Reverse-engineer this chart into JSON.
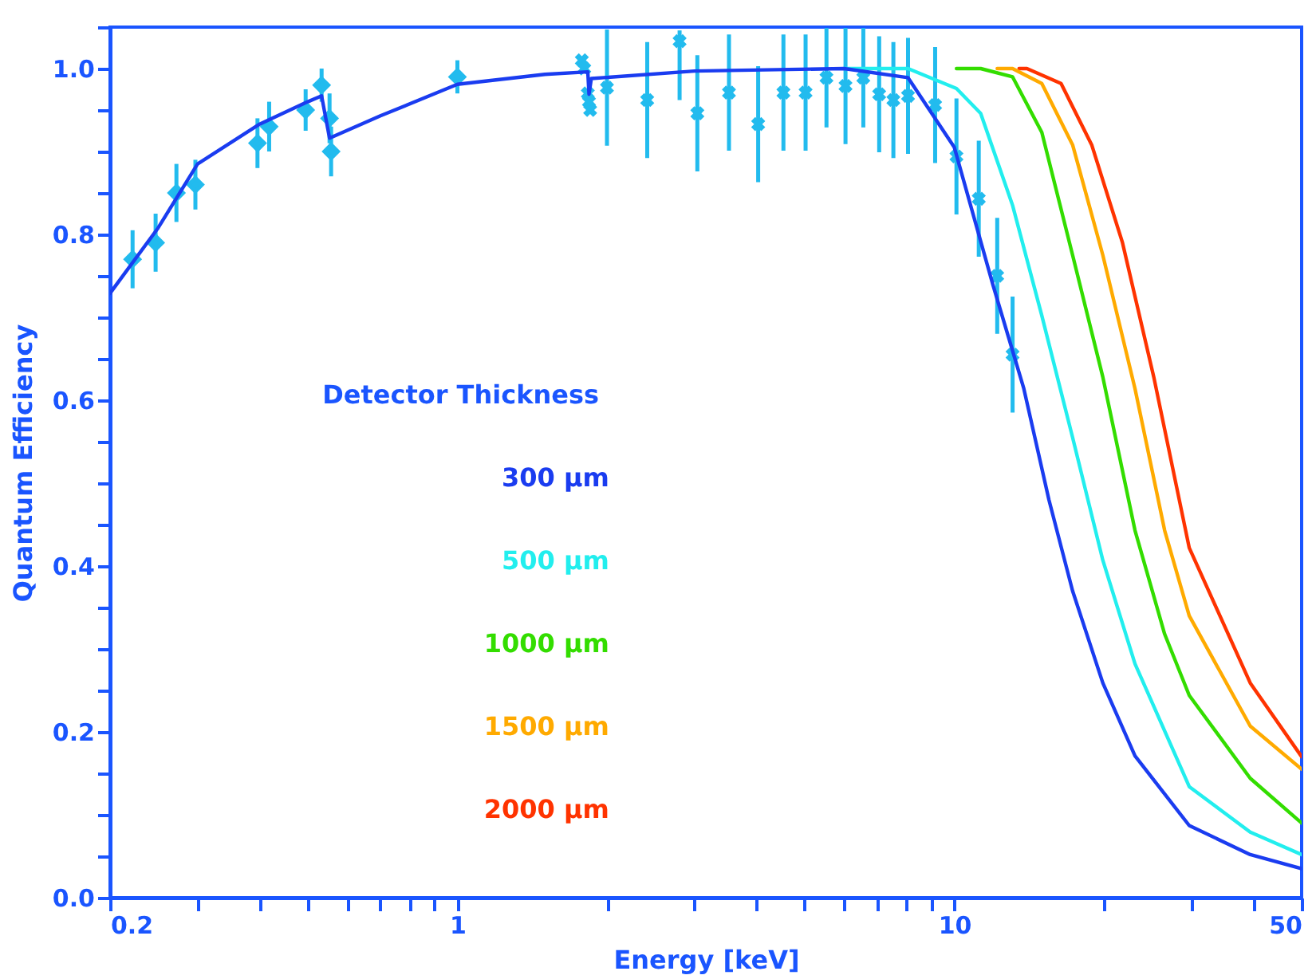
{
  "chart_data": {
    "type": "line",
    "xlabel": "Energy [keV]",
    "ylabel": "Quantum Efficiency",
    "legend_title": "Detector Thickness",
    "legend": "left",
    "log": "x",
    "grid": false,
    "line_style": "solid",
    "xlim": [
      0.2,
      50
    ],
    "ylim": [
      0,
      1.05
    ],
    "xticks": [
      0.2,
      {
        "value": 0.3,
        "label": null
      },
      {
        "value": 0.4,
        "label": null
      },
      {
        "value": 0.5,
        "label": null
      },
      {
        "value": 0.6,
        "label": null
      },
      {
        "value": 0.7,
        "label": null
      },
      {
        "value": 0.8,
        "label": null
      },
      {
        "value": 0.9,
        "label": null
      },
      1,
      {
        "value": 2,
        "label": null
      },
      {
        "value": 3,
        "label": null
      },
      {
        "value": 4,
        "label": null
      },
      {
        "value": 5,
        "label": null
      },
      {
        "value": 6,
        "label": null
      },
      {
        "value": 7,
        "label": null
      },
      {
        "value": 8,
        "label": null
      },
      {
        "value": 9,
        "label": null
      },
      10,
      {
        "value": 20,
        "label": null
      },
      {
        "value": 30,
        "label": null
      },
      {
        "value": 40,
        "label": null
      },
      50
    ],
    "yticks": [
      {
        "value": 0,
        "label": "0.0"
      },
      {
        "value": 0.05,
        "label": null
      },
      {
        "value": 0.1,
        "label": null
      },
      {
        "value": 0.15,
        "label": null
      },
      0.2,
      {
        "value": 0.25,
        "label": null
      },
      {
        "value": 0.3,
        "label": null
      },
      {
        "value": 0.35,
        "label": null
      },
      0.4,
      {
        "value": 0.45,
        "label": null
      },
      {
        "value": 0.5,
        "label": null
      },
      {
        "value": 0.55,
        "label": null
      },
      0.6,
      {
        "value": 0.65,
        "label": null
      },
      {
        "value": 0.7,
        "label": null
      },
      {
        "value": 0.75,
        "label": null
      },
      0.8,
      {
        "value": 0.85,
        "label": null
      },
      {
        "value": 0.9,
        "label": null
      },
      {
        "value": 0.95,
        "label": null
      },
      {
        "value": 1,
        "label": "1.0"
      },
      {
        "value": 1.05,
        "label": null
      }
    ],
    "series": [
      {
        "name": "300 μm",
        "color": "#1a3cf0",
        "x": [
          0.2,
          0.25,
          0.3,
          0.4,
          0.5,
          0.533,
          0.553,
          0.7,
          1.0,
          1.5,
          1.83,
          1.84,
          1.86,
          3,
          6,
          8.07,
          10,
          11.96,
          13.8,
          15.5,
          17.3,
          19.9,
          23.1,
          29.7,
          39.4,
          50
        ],
        "values": [
          0.729,
          0.808,
          0.885,
          0.933,
          0.96,
          0.967,
          0.916,
          0.943,
          0.981,
          0.993,
          0.996,
          0.969,
          0.988,
          0.997,
          1.0,
          0.989,
          0.905,
          0.739,
          0.614,
          0.48,
          0.37,
          0.259,
          0.171,
          0.087,
          0.052,
          0.035
        ]
      },
      {
        "name": "500 μm",
        "color": "#22eeee",
        "x": [
          6,
          8.07,
          10.1,
          11.3,
          13.1,
          15,
          17.3,
          19.9,
          23.1,
          29.7,
          39.4,
          50
        ],
        "values": [
          1.0,
          1.0,
          0.976,
          0.946,
          0.835,
          0.702,
          0.555,
          0.407,
          0.282,
          0.134,
          0.079,
          0.052
        ]
      },
      {
        "name": "1000 μm",
        "color": "#33dd00",
        "x": [
          10.1,
          11.3,
          13.1,
          15,
          17.3,
          19.9,
          23.1,
          26.5,
          29.7,
          39.4,
          50
        ],
        "values": [
          1.0,
          1.0,
          0.99,
          0.923,
          0.775,
          0.628,
          0.443,
          0.318,
          0.244,
          0.144,
          0.09
        ]
      },
      {
        "name": "1500 μm",
        "color": "#ffaa00",
        "x": [
          12.2,
          13.1,
          15,
          17.3,
          19.9,
          23.1,
          26.5,
          29.7,
          39.4,
          50
        ],
        "values": [
          1.0,
          1.0,
          0.982,
          0.908,
          0.775,
          0.614,
          0.443,
          0.34,
          0.207,
          0.155
        ]
      },
      {
        "name": "2000 μm",
        "color": "#ff3300",
        "x": [
          13.5,
          14,
          16.4,
          18.9,
          21.8,
          25.2,
          29.7,
          39.4,
          50
        ],
        "values": [
          1.0,
          1.0,
          0.982,
          0.908,
          0.79,
          0.628,
          0.422,
          0.259,
          0.17
        ]
      },
      {
        "type": "scatter",
        "marker": "diamond",
        "color": "#22bbee",
        "x": [
          0.222,
          0.247,
          0.272,
          0.297,
          0.396,
          0.418,
          0.495,
          0.533,
          0.553,
          0.557,
          1.0
        ],
        "values": [
          0.77,
          0.79,
          0.85,
          0.86,
          0.91,
          0.93,
          0.95,
          0.98,
          0.94,
          0.9,
          0.99
        ],
        "errors": [
          0.035,
          0.035,
          0.035,
          0.03,
          0.03,
          0.03,
          0.025,
          0.02,
          0.03,
          0.03,
          0.02
        ]
      },
      {
        "type": "scatter",
        "marker": "cross",
        "color": "#22bbee",
        "x": [
          1.78,
          1.8,
          1.83,
          1.84,
          1.85,
          2.0,
          2.41,
          2.8,
          3.04,
          3.52,
          4.03,
          4.53,
          5.02,
          5.53,
          6.04,
          6.56,
          7.06,
          7.54,
          8.07,
          9.15,
          10.1,
          11.2,
          12.2,
          13.1
        ],
        "values": [
          1.01,
          1.0,
          0.97,
          0.96,
          0.95,
          0.977,
          0.962,
          1.033,
          0.946,
          0.971,
          0.933,
          0.971,
          0.971,
          0.989,
          0.979,
          0.989,
          0.969,
          0.962,
          0.967,
          0.956,
          0.894,
          0.843,
          0.75,
          0.655
        ],
        "errors": [
          null,
          null,
          null,
          null,
          null,
          0.07,
          0.07,
          [
            0.962,
            1.046
          ],
          0.07,
          0.07,
          0.07,
          0.07,
          0.07,
          0.06,
          0.07,
          0.06,
          0.07,
          0.07,
          0.07,
          0.07,
          0.07,
          0.07,
          0.07,
          0.07
        ]
      }
    ]
  }
}
